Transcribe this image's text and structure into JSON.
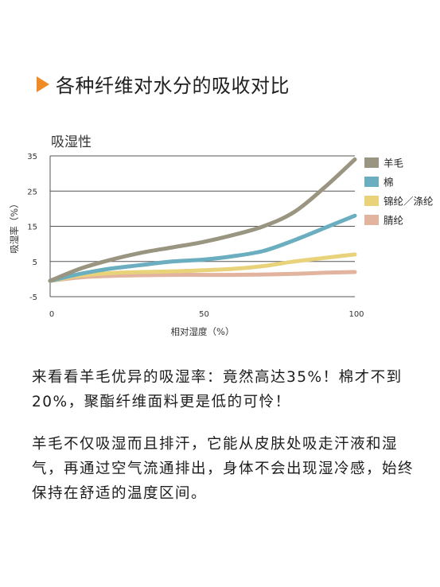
{
  "heading": "各种纤维对水分的吸收对比",
  "chart_data": {
    "type": "line",
    "title": "吸湿性",
    "xlabel": "相对湿度（%）",
    "ylabel": "吸湿率（%）",
    "xlim": [
      0,
      100
    ],
    "ylim": [
      -5,
      35
    ],
    "xticks": [
      0,
      50,
      100
    ],
    "yticks": [
      -5,
      5,
      15,
      25,
      35
    ],
    "grid": "horizontal",
    "legend": "right",
    "series": [
      {
        "name": "羊毛",
        "color": "#9a9580",
        "x": [
          0,
          10,
          20,
          30,
          40,
          50,
          60,
          70,
          80,
          90,
          100
        ],
        "y": [
          -0.5,
          3,
          5.5,
          7.5,
          9,
          10.5,
          12.5,
          15,
          19,
          26,
          34
        ]
      },
      {
        "name": "棉",
        "color": "#6aaebf",
        "x": [
          0,
          10,
          20,
          30,
          40,
          50,
          60,
          70,
          80,
          90,
          100
        ],
        "y": [
          -0.5,
          1.5,
          3,
          4,
          5,
          5.5,
          6.5,
          8,
          11,
          14.5,
          18
        ]
      },
      {
        "name": "锦纶／涤纶",
        "color": "#e8d27a",
        "x": [
          0,
          10,
          20,
          30,
          40,
          50,
          60,
          70,
          80,
          90,
          100
        ],
        "y": [
          -0.5,
          1,
          1.7,
          2,
          2.2,
          2.5,
          2.9,
          3.7,
          5,
          6,
          7
        ]
      },
      {
        "name": "腈纶",
        "color": "#e2b39e",
        "x": [
          0,
          10,
          20,
          30,
          40,
          50,
          60,
          70,
          80,
          90,
          100
        ],
        "y": [
          -0.5,
          0.5,
          0.9,
          1.1,
          1.2,
          1.2,
          1.2,
          1.3,
          1.5,
          1.8,
          2
        ]
      }
    ]
  },
  "paragraphs": [
    "来看看羊毛优异的吸湿率：竟然高达35%！棉才不到20%，聚酯纤维面料更是低的可怜！",
    "羊毛不仅吸湿而且排汗，它能从皮肤处吸走汗液和湿气，再通过空气流通排出，身体不会出现湿冷感，始终保持在舒适的温度区间。"
  ]
}
